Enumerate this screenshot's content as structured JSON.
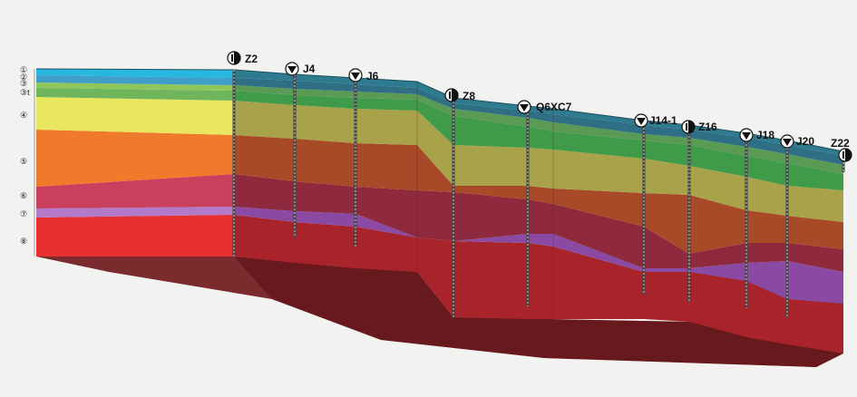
{
  "diagram": {
    "layers": [
      {
        "label": "①",
        "color": "#27b7e0"
      },
      {
        "label": "②",
        "color": "#3f9fc9"
      },
      {
        "label": "③",
        "color": "#8fc65c"
      },
      {
        "label": "③t",
        "color": "#6fb55c"
      },
      {
        "label": "④",
        "color": "#e8e75f"
      },
      {
        "label": "⑤",
        "color": "#ef7a2c"
      },
      {
        "label": "⑥",
        "color": "#c8405e"
      },
      {
        "label": "⑦",
        "color": "#b37ac9"
      },
      {
        "label": "⑧",
        "color": "#e8302e"
      }
    ],
    "boreholes": [
      {
        "id": "Z2",
        "type": "half"
      },
      {
        "id": "J4",
        "type": "triangle"
      },
      {
        "id": "J6",
        "type": "triangle"
      },
      {
        "id": "Z8",
        "type": "half"
      },
      {
        "id": "Q6XC7",
        "type": "triangle"
      },
      {
        "id": "J14-1",
        "type": "triangle"
      },
      {
        "id": "Z16",
        "type": "half"
      },
      {
        "id": "J18",
        "type": "triangle"
      },
      {
        "id": "J20",
        "type": "triangle"
      },
      {
        "id": "Z22",
        "type": "half"
      }
    ]
  }
}
